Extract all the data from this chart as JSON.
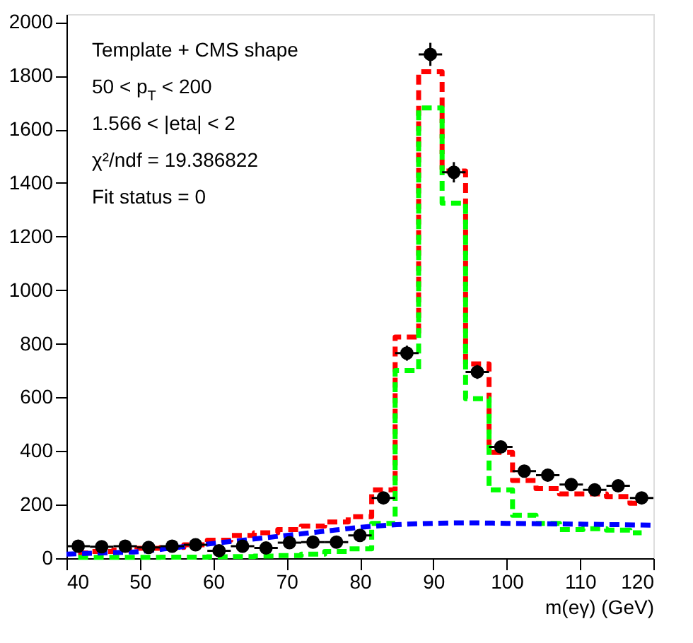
{
  "chart_data": {
    "type": "step",
    "xlabel": "m(eγ) (GeV)",
    "annotations": [
      "Template + CMS shape",
      "50 < p$_{T}$ < 200",
      "1.566 < |eta| < 2",
      "χ²/ndf = 19.386822",
      "Fit status = 0"
    ],
    "x": [
      41.6,
      44.8,
      48,
      51.2,
      54.4,
      57.6,
      60.8,
      64,
      67.2,
      70.4,
      73.6,
      76.8,
      80,
      83.2,
      86.4,
      89.6,
      92.8,
      96,
      99.2,
      102.4,
      105.6,
      108.8,
      112,
      115.2,
      118.4
    ],
    "series": [
      {
        "color": "#ff0000",
        "line_style": "dashed",
        "values": [
          20,
          25,
          30,
          37,
          40,
          50,
          67,
          85,
          95,
          107,
          120,
          135,
          155,
          255,
          825,
          1815,
          1445,
          725,
          395,
          290,
          260,
          240,
          240,
          230,
          205
        ]
      },
      {
        "color": "#00ff00",
        "line_style": "dashed",
        "values": [
          3,
          3,
          3,
          3,
          4,
          4,
          5,
          6,
          8,
          10,
          15,
          25,
          35,
          130,
          700,
          1680,
          1325,
          595,
          255,
          160,
          130,
          107,
          110,
          105,
          95
        ]
      },
      {
        "type": "line",
        "color": "#0000ff",
        "line_style": "dashed",
        "x": [
          40,
          45,
          50,
          55,
          60,
          65,
          70,
          75,
          80,
          85,
          90,
          95,
          100,
          110,
          120
        ],
        "values": [
          15,
          20,
          25,
          40,
          55,
          70,
          85,
          100,
          115,
          125,
          130,
          132,
          130,
          127,
          123
        ]
      },
      {
        "type": "scatter",
        "color": "#000000",
        "marker": "circle",
        "values": [
          45,
          43,
          45,
          40,
          45,
          50,
          28,
          45,
          38,
          58,
          60,
          60,
          85,
          225,
          765,
          1880,
          1440,
          695,
          415,
          325,
          310,
          275,
          255,
          270,
          225
        ],
        "errors": [
          7,
          7,
          7,
          6,
          7,
          7,
          5,
          7,
          6,
          8,
          8,
          8,
          9,
          15,
          28,
          43,
          38,
          26,
          20,
          18,
          18,
          17,
          16,
          16,
          15
        ],
        "xerrors": [
          1.6,
          1.6,
          1.6,
          1.6,
          1.6,
          1.6,
          1.6,
          1.6,
          1.6,
          1.6,
          1.6,
          1.6,
          1.6,
          1.6,
          1.6,
          1.6,
          1.6,
          1.6,
          1.6,
          1.6,
          1.6,
          1.6,
          1.6,
          1.6,
          1.6
        ]
      }
    ],
    "xlim": [
      40,
      120
    ],
    "xticks": [
      40,
      50,
      60,
      70,
      80,
      90,
      100,
      110,
      120
    ],
    "ylim": [
      0,
      2030
    ],
    "yticks": [
      0,
      200,
      400,
      600,
      800,
      1000,
      1200,
      1400,
      1600,
      1800,
      2000
    ],
    "grid": false
  }
}
